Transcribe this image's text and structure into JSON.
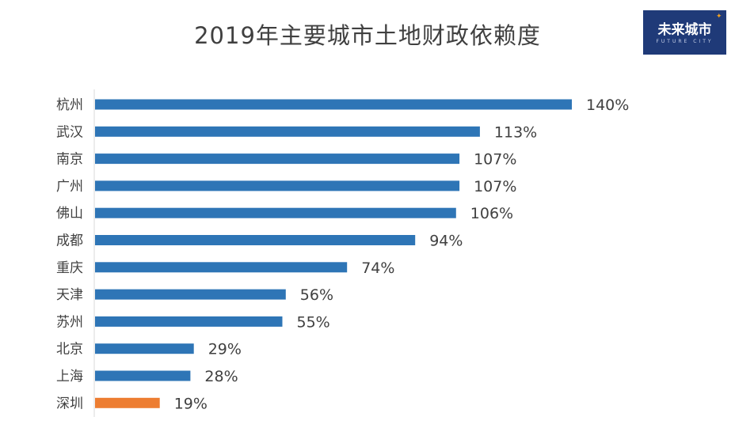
{
  "title": "2019年主要城市土地财政依赖度",
  "logo": {
    "text": "未来城市",
    "subtext": "FUTURE CITY"
  },
  "colors": {
    "primary": "#2e75b6",
    "highlight": "#ed7d31",
    "axis": "#d9d9d9",
    "label": "#404040"
  },
  "chart_data": {
    "type": "bar",
    "orientation": "horizontal",
    "title": "2019年主要城市土地财政依赖度",
    "xlabel": "",
    "ylabel": "",
    "unit": "%",
    "xlim": [
      0,
      140
    ],
    "grid": false,
    "legend": "none",
    "categories": [
      "杭州",
      "武汉",
      "南京",
      "广州",
      "佛山",
      "成都",
      "重庆",
      "天津",
      "苏州",
      "北京",
      "上海",
      "深圳"
    ],
    "values": [
      140,
      113,
      107,
      107,
      106,
      94,
      74,
      56,
      55,
      29,
      28,
      19
    ],
    "data_labels": [
      "140%",
      "113%",
      "107%",
      "107%",
      "106%",
      "94%",
      "74%",
      "56%",
      "55%",
      "29%",
      "28%",
      "19%"
    ],
    "highlight_category": "深圳"
  }
}
